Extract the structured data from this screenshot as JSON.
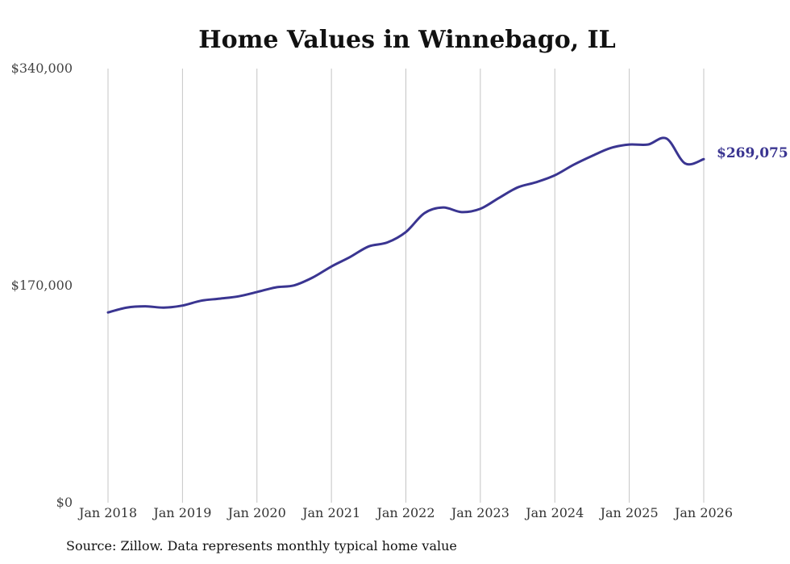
{
  "chart_data": {
    "type": "line",
    "title": "Home Values in Winnebago, IL",
    "xlabel": "",
    "ylabel": "",
    "ylim": [
      0,
      340000
    ],
    "grid": "vertical",
    "y_ticks": [
      {
        "value": 0,
        "label": "$0"
      },
      {
        "value": 170000,
        "label": "$170,000"
      },
      {
        "value": 340000,
        "label": "$340,000"
      }
    ],
    "x_ticks": [
      {
        "value": 2018,
        "label": "Jan 2018"
      },
      {
        "value": 2019,
        "label": "Jan 2019"
      },
      {
        "value": 2020,
        "label": "Jan 2020"
      },
      {
        "value": 2021,
        "label": "Jan 2021"
      },
      {
        "value": 2022,
        "label": "Jan 2022"
      },
      {
        "value": 2023,
        "label": "Jan 2023"
      },
      {
        "value": 2024,
        "label": "Jan 2024"
      },
      {
        "value": 2025,
        "label": "Jan 2025"
      },
      {
        "value": 2026,
        "label": "Jan 2026"
      }
    ],
    "series": [
      {
        "name": "Typical home value",
        "color": "#3a3591",
        "end_label": "$269,075",
        "x": [
          2018.0,
          2018.25,
          2018.5,
          2018.75,
          2019.0,
          2019.25,
          2019.5,
          2019.75,
          2020.0,
          2020.25,
          2020.5,
          2020.75,
          2021.0,
          2021.25,
          2021.5,
          2021.75,
          2022.0,
          2022.25,
          2022.5,
          2022.75,
          2023.0,
          2023.25,
          2023.5,
          2023.75,
          2024.0,
          2024.25,
          2024.5,
          2024.75,
          2025.0,
          2025.25,
          2025.5,
          2025.75,
          2026.0
        ],
        "values": [
          149000,
          152800,
          153800,
          152800,
          154400,
          158200,
          159800,
          161600,
          165000,
          168600,
          170200,
          176400,
          185000,
          192400,
          200700,
          203800,
          212000,
          226800,
          231200,
          227600,
          230200,
          238700,
          246900,
          251000,
          256400,
          264600,
          271600,
          277800,
          280500,
          280500,
          285200,
          265700,
          269075
        ]
      }
    ]
  },
  "footer": {
    "source": "Source: Zillow. Data represents monthly typical home value"
  }
}
